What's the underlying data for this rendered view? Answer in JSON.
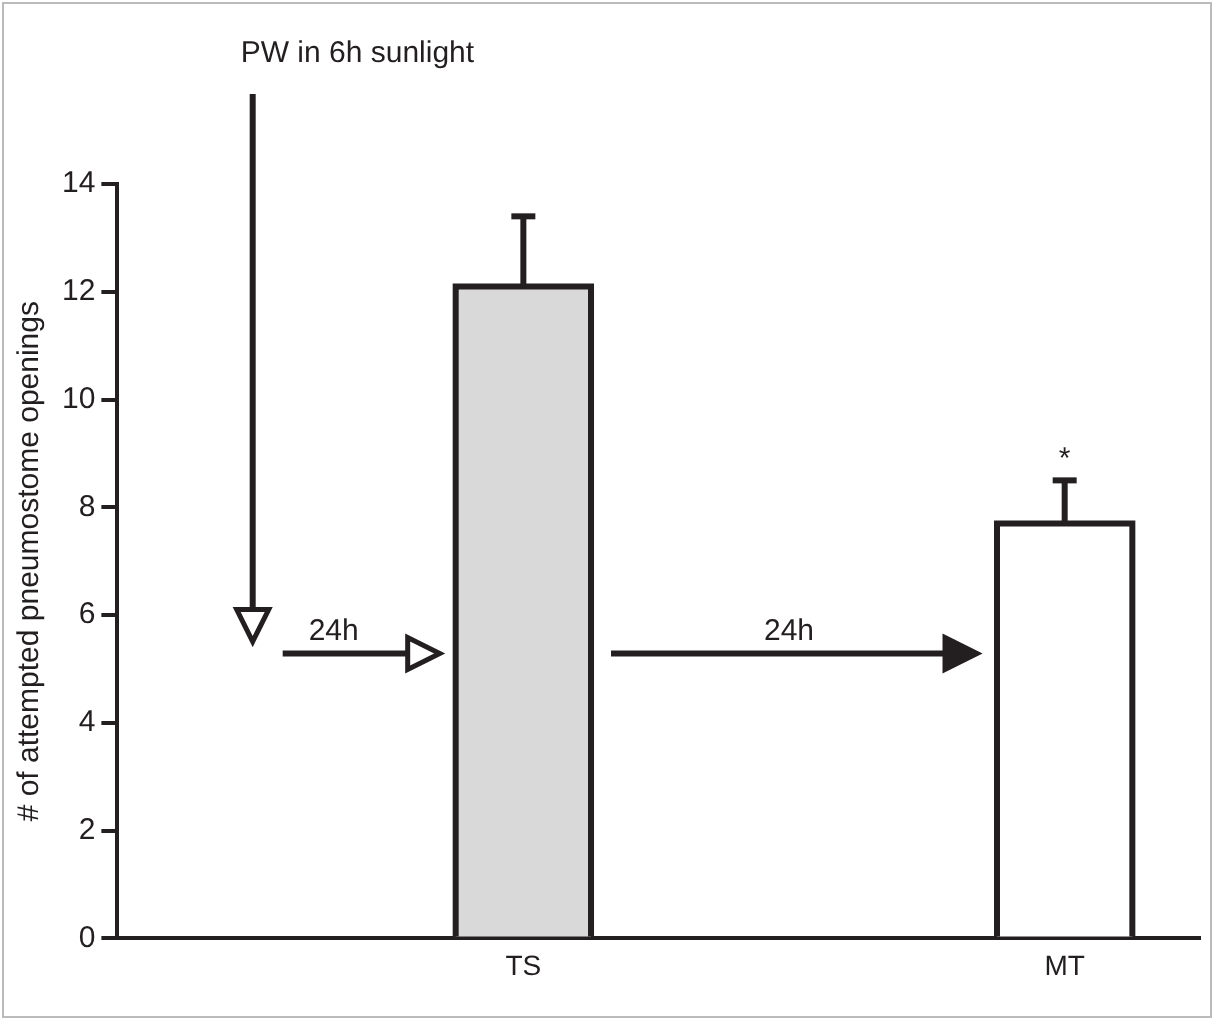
{
  "chart_data": {
    "type": "bar",
    "ylabel": "# of attempted pneumostome openings",
    "categories": [
      null,
      "TS",
      null,
      "MT"
    ],
    "series": [
      {
        "colors": [
          "#ffffff",
          "#d9d9d9",
          "#ffffff",
          "#ffffff"
        ],
        "values": [
          null,
          12.1,
          null,
          7.7
        ],
        "errors": [
          null,
          [
            12.1,
            13.4
          ],
          null,
          [
            7.7,
            8.5
          ]
        ]
      }
    ],
    "ylim": [
      0,
      14
    ],
    "yticks": [
      0,
      2,
      4,
      6,
      8,
      10,
      12,
      14
    ],
    "grid": false,
    "legend": false,
    "annotations": [
      "PW in 6h sunlight",
      "24h",
      "24h",
      {
        "text": "*",
        "x": "MT",
        "y": 8.5
      }
    ]
  }
}
